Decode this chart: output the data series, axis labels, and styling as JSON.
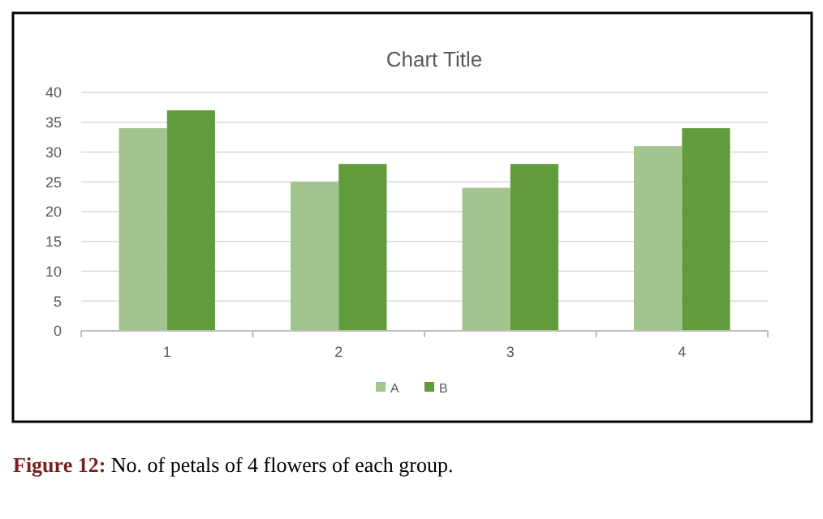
{
  "chart_data": {
    "type": "bar",
    "title": "Chart Title",
    "categories": [
      "1",
      "2",
      "3",
      "4"
    ],
    "series": [
      {
        "name": "A",
        "color": "#a2c48e",
        "values": [
          34,
          25,
          24,
          31
        ]
      },
      {
        "name": "B",
        "color": "#629b3c",
        "values": [
          37,
          28,
          28,
          34
        ]
      }
    ],
    "ylim": [
      0,
      40
    ],
    "yticks": [
      0,
      5,
      10,
      15,
      20,
      25,
      30,
      35,
      40
    ],
    "grid": "y",
    "legend": "bottom",
    "annotations": [
      "Figure 12: No. of petals of 4 flowers of each group."
    ]
  }
}
